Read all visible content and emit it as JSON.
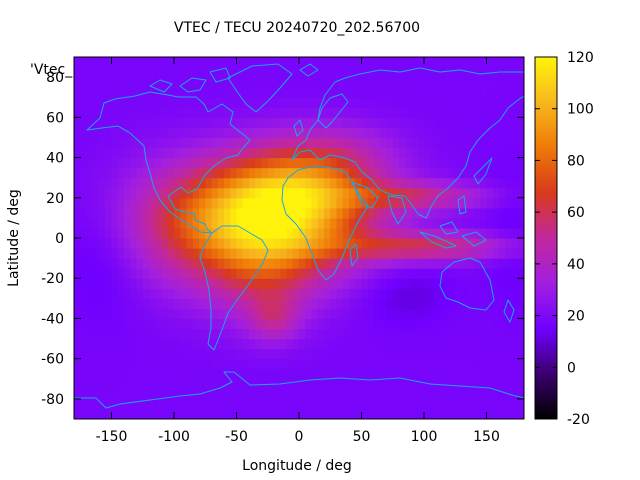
{
  "chart_data": {
    "type": "heatmap",
    "title": "VTEC / TECU 20240720_202.56700",
    "series_key": "'Vtec_",
    "xlabel": "Longitude / deg",
    "ylabel": "Latitude / deg",
    "xlim": [
      -180,
      180
    ],
    "ylim": [
      -90,
      90
    ],
    "xticks": [
      -150,
      -100,
      -50,
      0,
      50,
      100,
      150
    ],
    "yticks": [
      60,
      40,
      20,
      0,
      -20,
      -40,
      -60,
      -80
    ],
    "ytick_partial": "80",
    "colorbar": {
      "min": -20,
      "max": 120,
      "ticks": [
        120,
        100,
        80,
        60,
        40,
        20,
        0,
        -20
      ],
      "colors": [
        "#000000",
        "#3a0070",
        "#7000ff",
        "#a21fe0",
        "#c2289c",
        "#d83a1c",
        "#ef7a08",
        "#f7b81d",
        "#fff30a"
      ]
    },
    "grid": false,
    "background_tecu": 18,
    "features": [
      {
        "label": "africa-daytime-peak",
        "lon": -10,
        "lat": 12,
        "peak_tecu": 80,
        "sigma_lon": 48,
        "sigma_lat": 20
      },
      {
        "label": "atlantic-crest",
        "lon": -55,
        "lat": 10,
        "peak_tecu": 30,
        "sigma_lon": 40,
        "sigma_lat": 18
      },
      {
        "label": "americas-crest",
        "lon": -105,
        "lat": 5,
        "peak_tecu": 22,
        "sigma_lon": 35,
        "sigma_lat": 22
      },
      {
        "label": "north-africa",
        "lon": 10,
        "lat": 28,
        "peak_tecu": 25,
        "sigma_lon": 40,
        "sigma_lat": 12
      },
      {
        "label": "south-atlantic-anomaly",
        "lon": -30,
        "lat": -18,
        "peak_tecu": 25,
        "sigma_lon": 32,
        "sigma_lat": 18
      },
      {
        "label": "south-atlantic-tail",
        "lon": -20,
        "lat": -40,
        "peak_tecu": 22,
        "sigma_lon": 14,
        "sigma_lat": 8
      },
      {
        "label": "indian-ocean-band",
        "lon": 100,
        "lat": -4,
        "peak_tecu": 38,
        "sigma_lon": 50,
        "sigma_lat": 5
      },
      {
        "label": "asia-band",
        "lon": 95,
        "lat": 21,
        "peak_tecu": 30,
        "sigma_lon": 40,
        "sigma_lat": 5
      },
      {
        "label": "europe-glow",
        "lon": 30,
        "lat": 45,
        "peak_tecu": 12,
        "sigma_lon": 35,
        "sigma_lat": 10
      },
      {
        "label": "pacific-low",
        "lon": -150,
        "lat": -10,
        "peak_tecu": -8,
        "sigma_lon": 25,
        "sigma_lat": 20
      },
      {
        "label": "indian-ocean-low",
        "lon": 85,
        "lat": -28,
        "peak_tecu": -8,
        "sigma_lon": 25,
        "sigma_lat": 10
      },
      {
        "label": "west-pacific-low",
        "lon": 170,
        "lat": 0,
        "peak_tecu": -5,
        "sigma_lon": 15,
        "sigma_lat": 25
      }
    ]
  }
}
